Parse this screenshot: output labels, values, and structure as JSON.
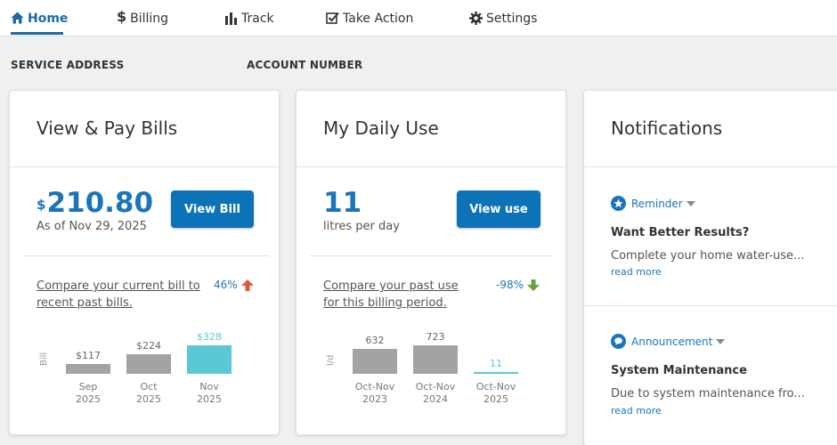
{
  "nav": {
    "items": [
      {
        "label": "Home",
        "icon": "home-icon",
        "active": true
      },
      {
        "label": "Billing",
        "icon": "dollar-icon"
      },
      {
        "label": "Track",
        "icon": "bar-chart-icon"
      },
      {
        "label": "Take Action",
        "icon": "checkbox-icon"
      },
      {
        "label": "Settings",
        "icon": "gear-icon"
      }
    ]
  },
  "account": {
    "service_address_label": "SERVICE ADDRESS",
    "account_number_label": "ACCOUNT NUMBER"
  },
  "bills": {
    "title": "View & Pay Bills",
    "currency": "$",
    "amount": "210.80",
    "as_of": "As of Nov 29, 2025",
    "button": "View Bill",
    "compare_link": "Compare your current bill to recent past bills.",
    "change_pct": "46%",
    "change_direction": "up",
    "chart_ylabel": "Bill",
    "chart_data": {
      "type": "bar",
      "categories": [
        [
          "Sep",
          "2025"
        ],
        [
          "Oct",
          "2025"
        ],
        [
          "Nov",
          "2025"
        ]
      ],
      "values": [
        117,
        224,
        328
      ],
      "labels": [
        "$117",
        "$224",
        "$328"
      ],
      "ylabel": "Bill",
      "highlight_index": 2
    }
  },
  "daily_use": {
    "title": "My Daily Use",
    "amount": "11",
    "unit": "litres per day",
    "button": "View use",
    "compare_link": "Compare your past use for this billing period.",
    "change_pct": "-98%",
    "change_direction": "down",
    "chart_ylabel": "l/d",
    "chart_data": {
      "type": "bar",
      "categories": [
        [
          "Oct-Nov",
          "2023"
        ],
        [
          "Oct-Nov",
          "2024"
        ],
        [
          "Oct-Nov",
          "2025"
        ]
      ],
      "values": [
        632,
        723,
        11
      ],
      "labels": [
        "632",
        "723",
        "11"
      ],
      "ylabel": "l/d",
      "highlight_index": 2
    }
  },
  "notifications": {
    "title": "Notifications",
    "items": [
      {
        "type": "Reminder",
        "icon": "star-icon",
        "heading": "Want Better Results?",
        "body": "Complete your home water-use...",
        "more": "read more"
      },
      {
        "type": "Announcement",
        "icon": "speech-bubble-icon",
        "heading": "System Maintenance",
        "body": "Due to system maintenance fro...",
        "more": "read more"
      }
    ]
  },
  "colors": {
    "brand": "#1b75bb",
    "button": "#0d73b8",
    "bar": "#a3a3a3",
    "bar_highlight": "#5bc8d6",
    "up_arrow": "#d9583f",
    "down_arrow": "#6ba23e"
  }
}
